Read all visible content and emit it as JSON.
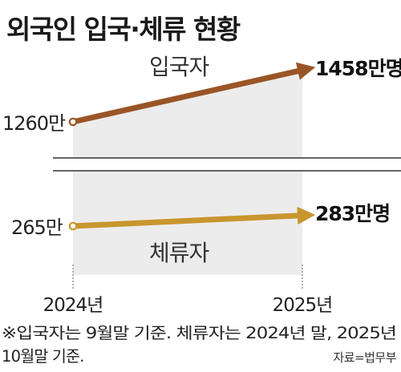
{
  "chart_data": {
    "type": "line",
    "title": "외국인 입국·체류 현황",
    "categories": [
      "2024년",
      "2025년"
    ],
    "series": [
      {
        "name": "입국자",
        "values": [
          1260,
          1458
        ],
        "unit": "만",
        "start_label": "1260만",
        "end_label": "1458만명",
        "color": "#9a5526"
      },
      {
        "name": "체류자",
        "values": [
          265,
          283
        ],
        "unit": "만",
        "start_label": "265만",
        "end_label": "283만명",
        "color": "#c8962e"
      }
    ],
    "axis_break": true,
    "area_fill": "#ececec",
    "grid": false,
    "legend": "none",
    "footnote": {
      "line1": "※입국자는 9월말 기준. 체류자는 2024년 말, 2025년",
      "line2": "10월말 기준."
    },
    "source": "자료=법무부"
  }
}
